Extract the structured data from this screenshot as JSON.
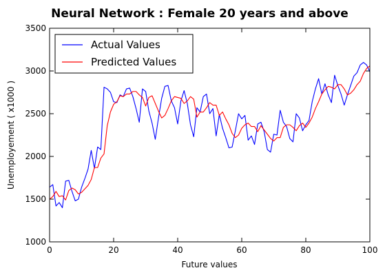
{
  "chart_data": {
    "type": "line",
    "title": "Neural Network : Female 20 years and above",
    "xlabel": "Future values",
    "ylabel": "Unemployement ( x1000 )",
    "xlim": [
      0,
      100
    ],
    "ylim": [
      1000,
      3500
    ],
    "xticks": [
      0,
      20,
      40,
      60,
      80,
      100
    ],
    "yticks": [
      1000,
      1500,
      2000,
      2500,
      3000,
      3500
    ],
    "grid": false,
    "legend_position": "top-left",
    "series": [
      {
        "name": "Actual Values",
        "color": "#0000ff",
        "x": [
          0,
          1,
          2,
          3,
          4,
          5,
          6,
          7,
          8,
          9,
          10,
          11,
          12,
          13,
          14,
          15,
          16,
          17,
          18,
          19,
          20,
          21,
          22,
          23,
          24,
          25,
          26,
          27,
          28,
          29,
          30,
          31,
          32,
          33,
          34,
          35,
          36,
          37,
          38,
          39,
          40,
          41,
          42,
          43,
          44,
          45,
          46,
          47,
          48,
          49,
          50,
          51,
          52,
          53,
          54,
          55,
          56,
          57,
          58,
          59,
          60,
          61,
          62,
          63,
          64,
          65,
          66,
          67,
          68,
          69,
          70,
          71,
          72,
          73,
          74,
          75,
          76,
          77,
          78,
          79,
          80,
          81,
          82,
          83,
          84,
          85,
          86,
          87,
          88,
          89,
          90,
          91,
          92,
          93,
          94,
          95,
          96,
          97,
          98,
          99,
          100
        ],
        "values": [
          1640,
          1670,
          1420,
          1460,
          1400,
          1710,
          1720,
          1590,
          1480,
          1500,
          1640,
          1740,
          1850,
          2070,
          1860,
          2110,
          2080,
          2810,
          2790,
          2750,
          2640,
          2630,
          2720,
          2700,
          2790,
          2800,
          2700,
          2560,
          2400,
          2790,
          2760,
          2530,
          2390,
          2200,
          2450,
          2680,
          2820,
          2830,
          2650,
          2570,
          2380,
          2650,
          2770,
          2620,
          2370,
          2230,
          2570,
          2520,
          2700,
          2730,
          2500,
          2560,
          2240,
          2490,
          2330,
          2220,
          2100,
          2110,
          2300,
          2500,
          2440,
          2480,
          2190,
          2240,
          2140,
          2380,
          2400,
          2290,
          2080,
          2050,
          2260,
          2250,
          2540,
          2400,
          2350,
          2210,
          2170,
          2500,
          2450,
          2300,
          2370,
          2420,
          2640,
          2790,
          2910,
          2730,
          2850,
          2720,
          2630,
          2950,
          2830,
          2730,
          2600,
          2720,
          2830,
          2940,
          2980,
          3070,
          3100,
          3070,
          2990
        ]
      },
      {
        "name": "Predicted Values",
        "color": "#ff0000",
        "x": [
          0,
          1,
          2,
          3,
          4,
          5,
          6,
          7,
          8,
          9,
          10,
          11,
          12,
          13,
          14,
          15,
          16,
          17,
          18,
          19,
          20,
          21,
          22,
          23,
          24,
          25,
          26,
          27,
          28,
          29,
          30,
          31,
          32,
          33,
          34,
          35,
          36,
          37,
          38,
          39,
          40,
          41,
          42,
          43,
          44,
          45,
          46,
          47,
          48,
          49,
          50,
          51,
          52,
          53,
          54,
          55,
          56,
          57,
          58,
          59,
          60,
          61,
          62,
          63,
          64,
          65,
          66,
          67,
          68,
          69,
          70,
          71,
          72,
          73,
          74,
          75,
          76,
          77,
          78,
          79,
          80,
          81,
          82,
          83,
          84,
          85,
          86,
          87,
          88,
          89,
          90,
          91,
          92,
          93,
          94,
          95,
          96,
          97,
          98,
          99,
          100
        ],
        "values": [
          1500,
          1530,
          1590,
          1530,
          1540,
          1490,
          1600,
          1630,
          1610,
          1560,
          1580,
          1620,
          1660,
          1730,
          1870,
          1870,
          1980,
          2030,
          2360,
          2520,
          2610,
          2640,
          2710,
          2700,
          2730,
          2730,
          2760,
          2760,
          2720,
          2690,
          2590,
          2690,
          2710,
          2620,
          2530,
          2450,
          2480,
          2560,
          2650,
          2700,
          2690,
          2680,
          2620,
          2650,
          2700,
          2670,
          2460,
          2520,
          2520,
          2570,
          2630,
          2600,
          2600,
          2480,
          2520,
          2440,
          2370,
          2270,
          2220,
          2250,
          2330,
          2370,
          2390,
          2350,
          2350,
          2290,
          2360,
          2310,
          2260,
          2210,
          2180,
          2220,
          2220,
          2340,
          2370,
          2370,
          2340,
          2300,
          2360,
          2390,
          2340,
          2390,
          2460,
          2560,
          2640,
          2730,
          2780,
          2820,
          2810,
          2790,
          2840,
          2840,
          2790,
          2720,
          2740,
          2780,
          2840,
          2880,
          2970,
          3030,
          3060
        ]
      }
    ]
  }
}
